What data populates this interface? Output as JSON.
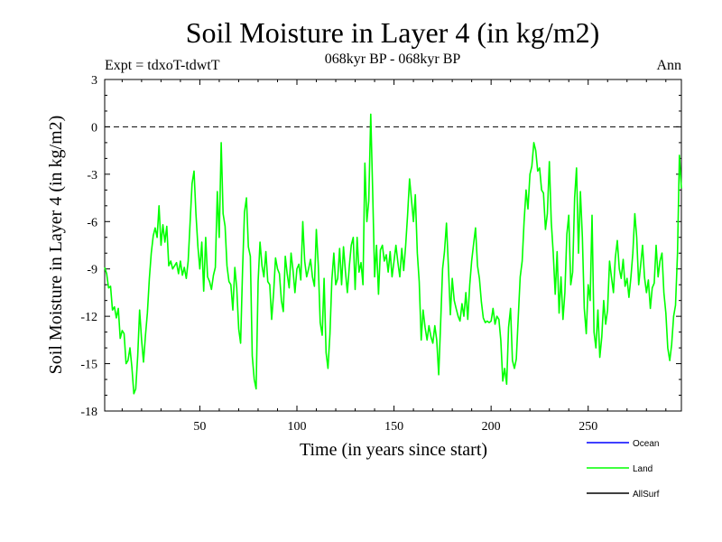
{
  "chart_data": {
    "type": "line",
    "title": "Soil Moisture in Layer 4 (in kg/m2)",
    "subtitle": "068kyr BP - 068kyr BP",
    "expt_label": "Expt = tdxoT-tdwtT",
    "season_label": "Ann",
    "xlabel": "Time (in years since start)",
    "ylabel": "Soil Moisture in Layer 4 (in kg/m2)",
    "xlim": [
      1,
      298
    ],
    "ylim": [
      -18,
      3
    ],
    "xticks": [
      50,
      100,
      150,
      200,
      250
    ],
    "yticks": [
      3,
      0,
      -3,
      -6,
      -9,
      -12,
      -15,
      -18
    ],
    "reference_line": {
      "y": 0,
      "style": "dashed"
    },
    "legend": [
      {
        "name": "Ocean",
        "color": "#0000ff"
      },
      {
        "name": "Land",
        "color": "#00ff00"
      },
      {
        "name": "AllSurf",
        "color": "#000000"
      }
    ],
    "series": [
      {
        "name": "Land",
        "color": "#00ff00",
        "points": [
          [
            1,
            -8.9
          ],
          [
            2,
            -9.3
          ],
          [
            3,
            -10.2
          ],
          [
            4,
            -10.1
          ],
          [
            5,
            -11.6
          ],
          [
            6,
            -11.4
          ],
          [
            7,
            -12.1
          ],
          [
            8,
            -11.5
          ],
          [
            9,
            -13.4
          ],
          [
            10,
            -12.9
          ],
          [
            11,
            -13.1
          ],
          [
            12,
            -15.0
          ],
          [
            13,
            -14.8
          ],
          [
            14,
            -14.0
          ],
          [
            15,
            -15.2
          ],
          [
            16,
            -16.9
          ],
          [
            17,
            -16.6
          ],
          [
            18,
            -14.5
          ],
          [
            19,
            -11.6
          ],
          [
            20,
            -13.5
          ],
          [
            21,
            -14.9
          ],
          [
            22,
            -13.2
          ],
          [
            23,
            -11.8
          ],
          [
            24,
            -9.6
          ],
          [
            25,
            -8.0
          ],
          [
            26,
            -6.9
          ],
          [
            27,
            -6.4
          ],
          [
            28,
            -7.0
          ],
          [
            29,
            -5.0
          ],
          [
            30,
            -7.5
          ],
          [
            31,
            -6.2
          ],
          [
            32,
            -7.3
          ],
          [
            33,
            -6.3
          ],
          [
            34,
            -8.8
          ],
          [
            35,
            -8.5
          ],
          [
            36,
            -9.0
          ],
          [
            37,
            -8.8
          ],
          [
            38,
            -8.6
          ],
          [
            39,
            -9.3
          ],
          [
            40,
            -8.5
          ],
          [
            41,
            -9.4
          ],
          [
            42,
            -8.9
          ],
          [
            43,
            -9.6
          ],
          [
            44,
            -8.5
          ],
          [
            45,
            -6.0
          ],
          [
            46,
            -3.6
          ],
          [
            47,
            -2.8
          ],
          [
            48,
            -5.5
          ],
          [
            49,
            -7.6
          ],
          [
            50,
            -9.0
          ],
          [
            51,
            -7.3
          ],
          [
            52,
            -10.4
          ],
          [
            53,
            -7.0
          ],
          [
            54,
            -9.5
          ],
          [
            55,
            -9.8
          ],
          [
            56,
            -10.3
          ],
          [
            57,
            -9.4
          ],
          [
            58,
            -8.9
          ],
          [
            59,
            -4.1
          ],
          [
            60,
            -7.0
          ],
          [
            61,
            -1.0
          ],
          [
            62,
            -5.5
          ],
          [
            63,
            -6.3
          ],
          [
            64,
            -8.8
          ],
          [
            65,
            -9.8
          ],
          [
            66,
            -10.0
          ],
          [
            67,
            -11.6
          ],
          [
            68,
            -8.9
          ],
          [
            69,
            -10.2
          ],
          [
            70,
            -12.8
          ],
          [
            71,
            -13.7
          ],
          [
            72,
            -9.0
          ],
          [
            73,
            -5.4
          ],
          [
            74,
            -4.5
          ],
          [
            75,
            -7.6
          ],
          [
            76,
            -8.2
          ],
          [
            77,
            -14.5
          ],
          [
            78,
            -16.0
          ],
          [
            79,
            -16.6
          ],
          [
            80,
            -9.8
          ],
          [
            81,
            -7.3
          ],
          [
            82,
            -8.8
          ],
          [
            83,
            -9.5
          ],
          [
            84,
            -7.9
          ],
          [
            85,
            -9.8
          ],
          [
            86,
            -10.0
          ],
          [
            87,
            -12.2
          ],
          [
            88,
            -10.5
          ],
          [
            89,
            -8.3
          ],
          [
            90,
            -9.0
          ],
          [
            91,
            -9.3
          ],
          [
            92,
            -11.0
          ],
          [
            93,
            -11.7
          ],
          [
            94,
            -8.2
          ],
          [
            95,
            -9.3
          ],
          [
            96,
            -10.2
          ],
          [
            97,
            -8.0
          ],
          [
            98,
            -9.1
          ],
          [
            99,
            -10.5
          ],
          [
            100,
            -9.0
          ],
          [
            101,
            -8.7
          ],
          [
            102,
            -9.7
          ],
          [
            103,
            -6.0
          ],
          [
            104,
            -8.5
          ],
          [
            105,
            -9.5
          ],
          [
            106,
            -9.0
          ],
          [
            107,
            -8.4
          ],
          [
            108,
            -9.5
          ],
          [
            109,
            -10.1
          ],
          [
            110,
            -6.5
          ],
          [
            111,
            -8.8
          ],
          [
            112,
            -12.4
          ],
          [
            113,
            -13.2
          ],
          [
            114,
            -9.6
          ],
          [
            115,
            -14.3
          ],
          [
            116,
            -15.3
          ],
          [
            117,
            -13.1
          ],
          [
            118,
            -9.7
          ],
          [
            119,
            -8.0
          ],
          [
            120,
            -10.0
          ],
          [
            121,
            -9.6
          ],
          [
            122,
            -7.7
          ],
          [
            123,
            -10.0
          ],
          [
            124,
            -7.6
          ],
          [
            125,
            -9.2
          ],
          [
            126,
            -10.5
          ],
          [
            127,
            -8.8
          ],
          [
            128,
            -7.5
          ],
          [
            129,
            -7.0
          ],
          [
            130,
            -10.3
          ],
          [
            131,
            -7.0
          ],
          [
            132,
            -9.2
          ],
          [
            133,
            -8.6
          ],
          [
            134,
            -10.0
          ],
          [
            135,
            -2.3
          ],
          [
            136,
            -6.0
          ],
          [
            137,
            -4.7
          ],
          [
            138,
            0.8
          ],
          [
            139,
            -4.0
          ],
          [
            140,
            -9.5
          ],
          [
            141,
            -7.5
          ],
          [
            142,
            -10.6
          ],
          [
            143,
            -7.8
          ],
          [
            144,
            -7.5
          ],
          [
            145,
            -8.5
          ],
          [
            146,
            -8.1
          ],
          [
            147,
            -9.2
          ],
          [
            148,
            -7.9
          ],
          [
            149,
            -9.5
          ],
          [
            150,
            -8.5
          ],
          [
            151,
            -7.5
          ],
          [
            152,
            -8.6
          ],
          [
            153,
            -9.5
          ],
          [
            154,
            -7.7
          ],
          [
            155,
            -9.1
          ],
          [
            156,
            -7.5
          ],
          [
            157,
            -5.6
          ],
          [
            158,
            -3.3
          ],
          [
            159,
            -4.6
          ],
          [
            160,
            -6.0
          ],
          [
            161,
            -4.3
          ],
          [
            162,
            -8.0
          ],
          [
            163,
            -9.8
          ],
          [
            164,
            -13.5
          ],
          [
            165,
            -11.6
          ],
          [
            166,
            -12.7
          ],
          [
            167,
            -13.5
          ],
          [
            168,
            -12.6
          ],
          [
            169,
            -13.3
          ],
          [
            170,
            -13.7
          ],
          [
            171,
            -12.6
          ],
          [
            172,
            -13.5
          ],
          [
            173,
            -15.7
          ],
          [
            174,
            -12.5
          ],
          [
            175,
            -9.0
          ],
          [
            176,
            -7.9
          ],
          [
            177,
            -6.1
          ],
          [
            178,
            -8.8
          ],
          [
            179,
            -11.9
          ],
          [
            180,
            -9.6
          ],
          [
            181,
            -11.0
          ],
          [
            182,
            -11.5
          ],
          [
            183,
            -12.0
          ],
          [
            184,
            -12.3
          ],
          [
            185,
            -11.2
          ],
          [
            186,
            -12.0
          ],
          [
            187,
            -10.5
          ],
          [
            188,
            -12.2
          ],
          [
            189,
            -10.0
          ],
          [
            190,
            -8.5
          ],
          [
            191,
            -7.4
          ],
          [
            192,
            -6.4
          ],
          [
            193,
            -8.8
          ],
          [
            194,
            -9.6
          ],
          [
            195,
            -11.1
          ],
          [
            196,
            -12.1
          ],
          [
            197,
            -12.4
          ],
          [
            198,
            -12.3
          ],
          [
            199,
            -12.4
          ],
          [
            200,
            -12.3
          ],
          [
            201,
            -11.5
          ],
          [
            202,
            -12.5
          ],
          [
            203,
            -12.0
          ],
          [
            204,
            -12.2
          ],
          [
            205,
            -13.5
          ],
          [
            206,
            -16.1
          ],
          [
            207,
            -15.3
          ],
          [
            208,
            -16.3
          ],
          [
            209,
            -12.7
          ],
          [
            210,
            -11.5
          ],
          [
            211,
            -14.8
          ],
          [
            212,
            -15.3
          ],
          [
            213,
            -14.7
          ],
          [
            214,
            -12.0
          ],
          [
            215,
            -9.5
          ],
          [
            216,
            -8.5
          ],
          [
            217,
            -6.0
          ],
          [
            218,
            -4.0
          ],
          [
            219,
            -5.2
          ],
          [
            220,
            -3.0
          ],
          [
            221,
            -2.5
          ],
          [
            222,
            -1.0
          ],
          [
            223,
            -1.5
          ],
          [
            224,
            -2.8
          ],
          [
            225,
            -2.6
          ],
          [
            226,
            -4.0
          ],
          [
            227,
            -4.2
          ],
          [
            228,
            -6.5
          ],
          [
            229,
            -5.5
          ],
          [
            230,
            -2.2
          ],
          [
            231,
            -6.0
          ],
          [
            232,
            -8.0
          ],
          [
            233,
            -10.6
          ],
          [
            234,
            -7.9
          ],
          [
            235,
            -11.8
          ],
          [
            236,
            -9.5
          ],
          [
            237,
            -12.2
          ],
          [
            238,
            -10.5
          ],
          [
            239,
            -6.8
          ],
          [
            240,
            -5.6
          ],
          [
            241,
            -10.0
          ],
          [
            242,
            -9.2
          ],
          [
            243,
            -4.5
          ],
          [
            244,
            -2.6
          ],
          [
            245,
            -8.0
          ],
          [
            246,
            -4.1
          ],
          [
            247,
            -7.0
          ],
          [
            248,
            -11.5
          ],
          [
            249,
            -13.1
          ],
          [
            250,
            -10.0
          ],
          [
            251,
            -11.0
          ],
          [
            252,
            -5.6
          ],
          [
            253,
            -13.0
          ],
          [
            254,
            -14.0
          ],
          [
            255,
            -11.6
          ],
          [
            256,
            -14.6
          ],
          [
            257,
            -13.3
          ],
          [
            258,
            -11.0
          ],
          [
            259,
            -12.5
          ],
          [
            260,
            -11.6
          ],
          [
            261,
            -8.5
          ],
          [
            262,
            -9.5
          ],
          [
            263,
            -10.5
          ],
          [
            264,
            -8.3
          ],
          [
            265,
            -7.2
          ],
          [
            266,
            -9.0
          ],
          [
            267,
            -9.6
          ],
          [
            268,
            -8.4
          ],
          [
            269,
            -10.1
          ],
          [
            270,
            -9.6
          ],
          [
            271,
            -10.8
          ],
          [
            272,
            -9.5
          ],
          [
            273,
            -8.0
          ],
          [
            274,
            -5.5
          ],
          [
            275,
            -7.0
          ],
          [
            276,
            -10.0
          ],
          [
            277,
            -8.8
          ],
          [
            278,
            -7.5
          ],
          [
            279,
            -9.5
          ],
          [
            280,
            -10.5
          ],
          [
            281,
            -9.7
          ],
          [
            282,
            -11.5
          ],
          [
            283,
            -10.2
          ],
          [
            284,
            -9.9
          ],
          [
            285,
            -7.5
          ],
          [
            286,
            -9.5
          ],
          [
            287,
            -8.5
          ],
          [
            288,
            -8.0
          ],
          [
            289,
            -10.5
          ],
          [
            290,
            -11.8
          ],
          [
            291,
            -14.0
          ],
          [
            292,
            -14.8
          ],
          [
            293,
            -13.8
          ],
          [
            294,
            -12.0
          ],
          [
            295,
            -11.3
          ],
          [
            296,
            -8.0
          ],
          [
            297,
            -1.8
          ],
          [
            298,
            -3.9
          ]
        ]
      }
    ]
  }
}
